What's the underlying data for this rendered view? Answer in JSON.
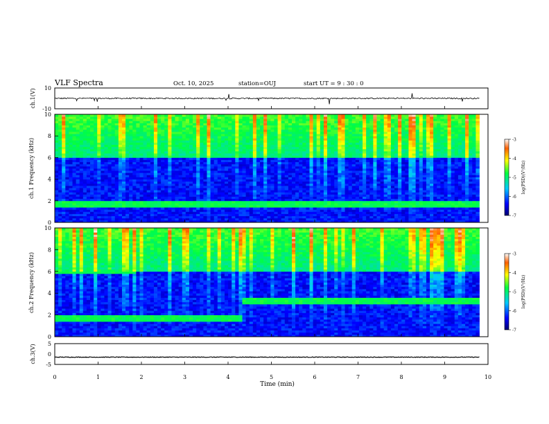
{
  "header": {
    "title": "VLF Spectra",
    "date": "Oct. 10, 2025",
    "station": "station=OUJ",
    "start": "start UT =  9 : 30 : 0"
  },
  "chart_data": {
    "type": "heatmap",
    "title": "VLF Spectra",
    "xlabel": "Time (min)",
    "xlim": [
      0,
      10
    ],
    "x_ticks": [
      "0",
      "1",
      "2",
      "3",
      "4",
      "5",
      "6",
      "7",
      "8",
      "9",
      "10"
    ],
    "panels": [
      {
        "name": "ch1-waveform",
        "kind": "line",
        "ylabel": "ch.1(V)",
        "ylim": [
          -10,
          10
        ],
        "y_ticks": [
          "10",
          "-10"
        ],
        "baseline": 0,
        "noise": 0.6
      },
      {
        "name": "ch1-spectrogram",
        "kind": "heatmap",
        "ylabel": "ch.1 Frequency (kHz)",
        "ylim": [
          0,
          10
        ],
        "y_ticks": [
          "0",
          "2",
          "4",
          "6",
          "8",
          "10"
        ],
        "bands": [
          {
            "t_start": 0,
            "t_end": 9.8,
            "f_low": 1.4,
            "f_high": 1.9
          }
        ]
      },
      {
        "name": "ch2-spectrogram",
        "kind": "heatmap",
        "ylabel": "ch.2 Frequency (kHz)",
        "ylim": [
          0,
          10
        ],
        "y_ticks": [
          "0",
          "2",
          "4",
          "6",
          "8",
          "10"
        ],
        "bands": [
          {
            "t_start": 0,
            "t_end": 4.3,
            "f_low": 1.4,
            "f_high": 2.0
          },
          {
            "t_start": 4.3,
            "t_end": 9.8,
            "f_low": 3.0,
            "f_high": 3.5
          },
          {
            "t_start": 0,
            "t_end": 1.9,
            "f_low": 5.8,
            "f_high": 6.2
          }
        ]
      },
      {
        "name": "ch3-waveform",
        "kind": "line",
        "ylabel": "ch.3(V)",
        "ylim": [
          -5,
          5
        ],
        "y_ticks": [
          "5",
          "0",
          "-5"
        ],
        "baseline": -1.5,
        "noise": 0.15
      }
    ],
    "colorbar": {
      "label": "log(PSD)(V²/Hz)",
      "range": [
        -7,
        -3
      ],
      "ticks": [
        "-3",
        "-4",
        "-5",
        "-6",
        "-7"
      ]
    },
    "data_end_min": 9.8
  }
}
